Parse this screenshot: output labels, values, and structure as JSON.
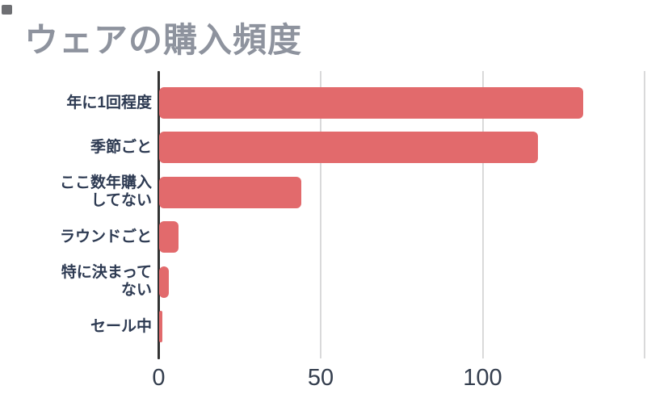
{
  "header": {
    "title": "ウェアの購入頻度",
    "title_color": "#8e939e"
  },
  "chart_data": {
    "type": "bar",
    "orientation": "horizontal",
    "title": "ウェアの購入頻度",
    "categories": [
      "年に1回程度",
      "季節ごと",
      "ここ数年購入してない",
      "ラウンドごと",
      "特に決まってない",
      "セール中"
    ],
    "category_display_lines": [
      [
        "年に1回程度"
      ],
      [
        "季節ごと"
      ],
      [
        "ここ数年購入",
        "してない"
      ],
      [
        "ラウンドごと"
      ],
      [
        "特に決まって",
        "ない"
      ],
      [
        "セール中"
      ]
    ],
    "values": [
      131,
      117,
      44,
      6,
      3,
      1
    ],
    "xlabel": "",
    "ylabel": "",
    "xlim": [
      0,
      153
    ],
    "x_tick_labels": [
      "0",
      "50",
      "100"
    ],
    "x_tick_values": [
      0,
      50,
      100
    ],
    "gridlines_at": [
      50,
      100,
      150
    ],
    "grid": "vertical-only",
    "legend": "none",
    "bar_color": "#e26a6c",
    "axis_color": "#333333",
    "gridline_color": "#d9d9da",
    "category_label_color": "#2d3a52",
    "tick_label_color": "#333d4d"
  }
}
